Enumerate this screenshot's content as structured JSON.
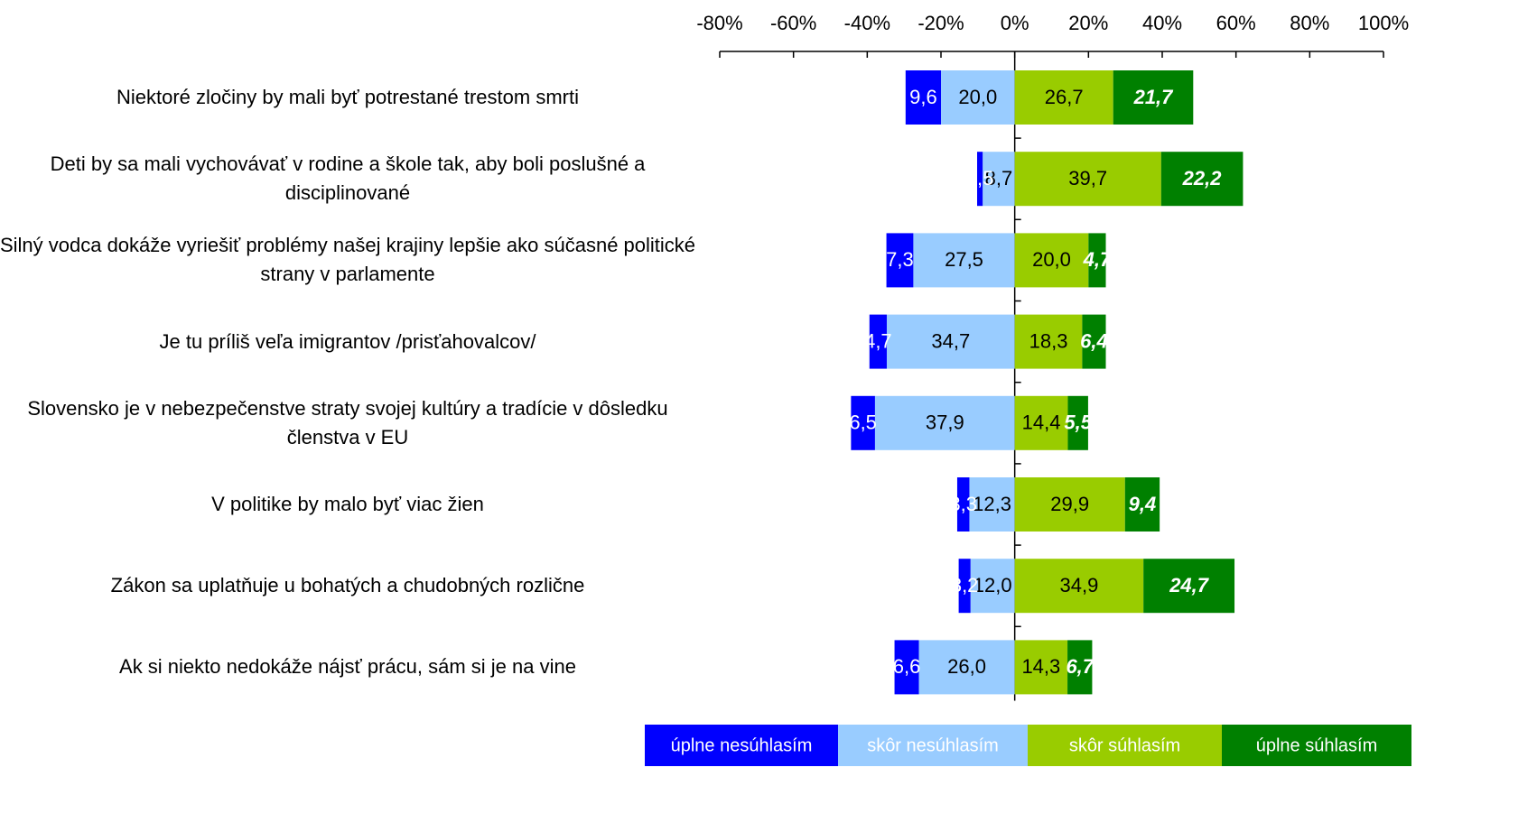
{
  "chart_data": {
    "type": "diverging-bar",
    "categories": [
      "Niektoré zločiny by mali byť potrestané trestom smrti",
      "Deti by sa mali vychovávať v rodine a škole tak, aby boli poslušné a disciplinované",
      "Silný vodca dokáže vyriešiť problémy našej krajiny lepšie ako súčasné politické strany v parlamente",
      "Je tu príliš veľa imigrantov /prisťahovalcov/",
      "Slovensko je v nebezpečenstve straty svojej kultúry a tradície v dôsledku členstva v EU",
      "V politike by  malo byť viac žien",
      "Zákon sa uplatňuje u bohatých a chudobných rozlične",
      "Ak si niekto nedokáže nájsť prácu, sám si je na vine"
    ],
    "series": [
      {
        "name": "úplne nesúhlasím",
        "color": "#0000ff",
        "values": [
          -9.6,
          -1.5,
          -7.3,
          -4.7,
          -6.5,
          -3.3,
          -3.2,
          -6.6
        ],
        "value_labels": [
          "9,6",
          "1,5",
          "7,3",
          "4,7",
          "6,5",
          "3,3",
          "3,2",
          "6,6"
        ]
      },
      {
        "name": "skôr nesúhlasím",
        "color": "#99ccff",
        "values": [
          -20.0,
          -8.7,
          -27.5,
          -34.7,
          -37.9,
          -12.3,
          -12.0,
          -26.0
        ],
        "value_labels": [
          "20,0",
          "8,7",
          "27,5",
          "34,7",
          "37,9",
          "12,3",
          "12,0",
          "26,0"
        ]
      },
      {
        "name": "skôr súhlasím",
        "color": "#99cc00",
        "values": [
          26.7,
          39.7,
          20.0,
          18.3,
          14.4,
          29.9,
          34.9,
          14.3
        ],
        "value_labels": [
          "26,7",
          "39,7",
          "20,0",
          "18,3",
          "14,4",
          "29,9",
          "34,9",
          "14,3"
        ]
      },
      {
        "name": "úplne súhlasím",
        "color": "#008000",
        "values": [
          21.7,
          22.2,
          4.7,
          6.4,
          5.5,
          9.4,
          24.7,
          6.7
        ],
        "value_labels": [
          "21,7",
          "22,2",
          "4,7",
          "6,4",
          "5,5",
          "9,4",
          "24,7",
          "6,7"
        ]
      }
    ],
    "xlim": [
      -80,
      100
    ],
    "xticks": [
      {
        "value": -80,
        "label": "-80%"
      },
      {
        "value": -60,
        "label": "-60%"
      },
      {
        "value": -40,
        "label": "-40%"
      },
      {
        "value": -20,
        "label": "-20%"
      },
      {
        "value": 0,
        "label": "0%"
      },
      {
        "value": 20,
        "label": "20%"
      },
      {
        "value": 40,
        "label": "40%"
      },
      {
        "value": 60,
        "label": "60%"
      },
      {
        "value": 80,
        "label": "80%"
      },
      {
        "value": 100,
        "label": "100%"
      }
    ]
  }
}
